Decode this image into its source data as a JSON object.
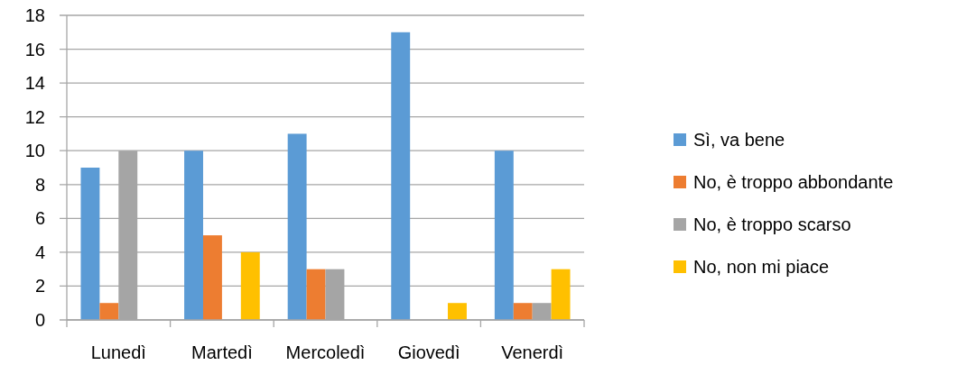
{
  "chart_data": {
    "type": "bar",
    "categories": [
      "Lunedì",
      "Martedì",
      "Mercoledì",
      "Giovedì",
      "Venerdì"
    ],
    "series": [
      {
        "name": "Sì, va bene",
        "color": "#5b9bd5",
        "values": [
          9,
          10,
          11,
          17,
          10
        ]
      },
      {
        "name": "No, è troppo abbondante",
        "color": "#ed7d31",
        "values": [
          1,
          5,
          3,
          null,
          1
        ]
      },
      {
        "name": "No, è troppo scarso",
        "color": "#a5a5a5",
        "values": [
          10,
          null,
          3,
          null,
          1
        ]
      },
      {
        "name": "No, non mi piace",
        "color": "#ffc000",
        "values": [
          null,
          4,
          null,
          1,
          3
        ]
      }
    ],
    "ylim": [
      0,
      18
    ],
    "yticks": [
      0,
      2,
      4,
      6,
      8,
      10,
      12,
      14,
      16,
      18
    ],
    "grid": "y",
    "legend": "right"
  }
}
